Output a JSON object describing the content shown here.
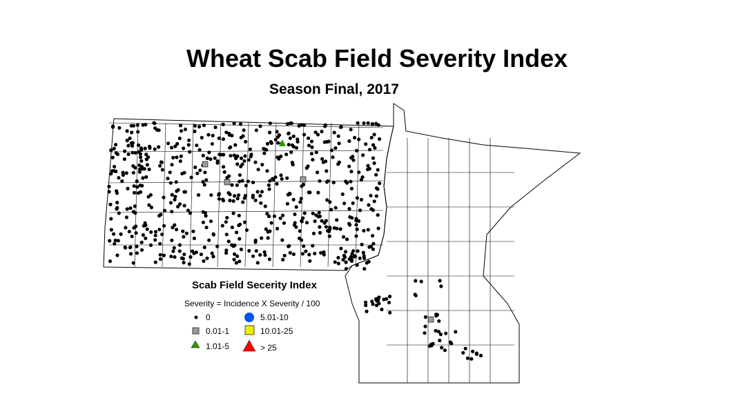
{
  "title": "Wheat Scab Field Severity Index",
  "subtitle": "Season Final, 2017",
  "legend": {
    "title": "Scab Field Secerity Index",
    "formula": "Severity = Incidence X Severity / 100",
    "items": [
      {
        "label": "0",
        "symbol": "small-black-dot",
        "color": "#000000"
      },
      {
        "label": "0.01-1",
        "symbol": "gray-square",
        "color": "#999999"
      },
      {
        "label": "1.01-5",
        "symbol": "green-triangle",
        "color": "#339900"
      },
      {
        "label": "5.01-10",
        "symbol": "blue-circle",
        "color": "#0055ee"
      },
      {
        "label": "10.01-25",
        "symbol": "yellow-square",
        "color": "#eeee00"
      },
      {
        "label": "> 25",
        "symbol": "red-triangle",
        "color": "#ff0000"
      }
    ]
  }
}
